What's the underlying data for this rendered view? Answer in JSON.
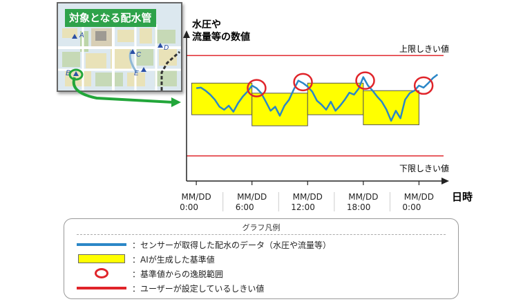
{
  "map": {
    "title": "対象となる配水管",
    "points": [
      "A",
      "B",
      "C",
      "D",
      "E"
    ]
  },
  "chart": {
    "ylabel_line1": "水圧や",
    "ylabel_line2": "流量等の数値",
    "xlabel": "日時",
    "upper_label": "上限しきい値",
    "lower_label": "下限しきい値",
    "ticks": [
      {
        "l1": "MM/DD",
        "l2": "0:00"
      },
      {
        "l1": "MM/DD",
        "l2": "6:00"
      },
      {
        "l1": "MM/DD",
        "l2": "12:00"
      },
      {
        "l1": "MM/DD",
        "l2": "18:00"
      },
      {
        "l1": "MM/DD",
        "l2": "0:00"
      }
    ]
  },
  "chart_data": {
    "type": "line",
    "xlabel": "日時",
    "ylabel": "水圧や流量等の数値",
    "x_ticks": [
      "MM/DD 0:00",
      "MM/DD 6:00",
      "MM/DD 12:00",
      "MM/DD 18:00",
      "MM/DD 0:00"
    ],
    "series": [
      {
        "name": "センサーが取得した配水のデータ（水圧や流量等）",
        "x": [
          0,
          0.5,
          1,
          1.5,
          2,
          2.5,
          3,
          3.5,
          4,
          4.5,
          5,
          5.5,
          6,
          6.5,
          7,
          7.5,
          8,
          8.5,
          9,
          9.5,
          10,
          10.5,
          11,
          11.5,
          12,
          12.5,
          13,
          13.5,
          14,
          14.5,
          15,
          15.5,
          16,
          16.5,
          17,
          17.5,
          18,
          18.5,
          19,
          19.5,
          20,
          20.5,
          21,
          21.5,
          22,
          22.5,
          23,
          23.5,
          24,
          24.5,
          25,
          25.5,
          26
        ],
        "values": [
          0.35,
          0.36,
          0.3,
          0.22,
          0.12,
          -0.02,
          -0.08,
          0.0,
          -0.12,
          0.05,
          0.18,
          0.28,
          0.4,
          0.35,
          0.25,
          0.08,
          -0.1,
          -0.02,
          -0.2,
          0.0,
          0.12,
          0.32,
          0.5,
          0.45,
          0.38,
          0.28,
          0.1,
          0.02,
          -0.08,
          0.08,
          -0.1,
          0.0,
          0.12,
          0.26,
          0.22,
          0.34,
          0.57,
          0.4,
          0.3,
          0.18,
          0.08,
          -0.08,
          -0.3,
          -0.1,
          -0.25,
          0.12,
          0.25,
          0.3,
          0.4,
          0.36,
          0.45,
          0.55,
          0.62
        ]
      }
    ],
    "baseline_bands": [
      {
        "name": "AIが生成した基準値",
        "x_start": -0.5,
        "x_end": 6,
        "top": 0.45,
        "bottom": -0.18
      },
      {
        "x_start": 6,
        "x_end": 12,
        "top": 0.25,
        "bottom": -0.4
      },
      {
        "x_start": 12,
        "x_end": 18,
        "top": 0.45,
        "bottom": -0.18
      },
      {
        "x_start": 18,
        "x_end": 24,
        "top": 0.3,
        "bottom": -0.38
      }
    ],
    "deviation_points": [
      {
        "x": 6.5,
        "y": 0.35
      },
      {
        "x": 11.5,
        "y": 0.47
      },
      {
        "x": 18.2,
        "y": 0.5
      },
      {
        "x": 24.5,
        "y": 0.4
      }
    ],
    "thresholds": {
      "upper": 1.0,
      "lower": -1.0
    },
    "ylim": [
      -1.5,
      1.5
    ],
    "xlim": [
      -1.2,
      26.5
    ],
    "grid": false,
    "legend_position": "bottom"
  },
  "legend": {
    "title": "グラフ凡例",
    "items": [
      {
        "label": "：センサーが取得した配水のデータ（水圧や流量等）",
        "kind": "line",
        "color": "#2b87c7"
      },
      {
        "label": "：AIが生成した基準値",
        "kind": "box",
        "color": "#ffff00"
      },
      {
        "label": "：基準値からの逸脱範囲",
        "kind": "circle",
        "color": "#e0242a"
      },
      {
        "label": "：ユーザーが設定しているしきい値",
        "kind": "line",
        "color": "#e0242a"
      }
    ]
  },
  "colors": {
    "data_line": "#2b87c7",
    "band": "#ffff00",
    "threshold": "#e0242a",
    "map_title_bg": "#2ea24a",
    "arrow": "#22a63a"
  }
}
